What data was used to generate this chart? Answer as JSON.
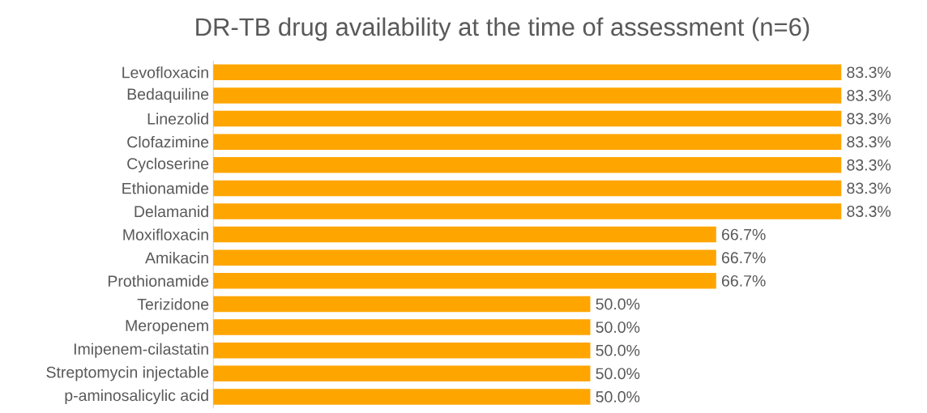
{
  "chart_data": {
    "type": "bar",
    "orientation": "horizontal",
    "title": "DR-TB drug availability at the time of assessment (n=6)",
    "categories": [
      "Levofloxacin",
      "Bedaquiline",
      "Linezolid",
      "Clofazimine",
      "Cycloserine",
      "Ethionamide",
      "Delamanid",
      "Moxifloxacin",
      "Amikacin",
      "Prothionamide",
      "Terizidone",
      "Meropenem",
      "Imipenem-cilastatin",
      "Streptomycin injectable",
      "p-aminosalicylic acid"
    ],
    "values": [
      83.3,
      83.3,
      83.3,
      83.3,
      83.3,
      83.3,
      83.3,
      66.7,
      66.7,
      66.7,
      50.0,
      50.0,
      50.0,
      50.0,
      50.0
    ],
    "value_labels": [
      "83.3%",
      "83.3%",
      "83.3%",
      "83.3%",
      "83.3%",
      "83.3%",
      "83.3%",
      "66.7%",
      "66.7%",
      "66.7%",
      "50.0%",
      "50.0%",
      "50.0%",
      "50.0%",
      "50.0%"
    ],
    "color": "#ffa500"
  }
}
